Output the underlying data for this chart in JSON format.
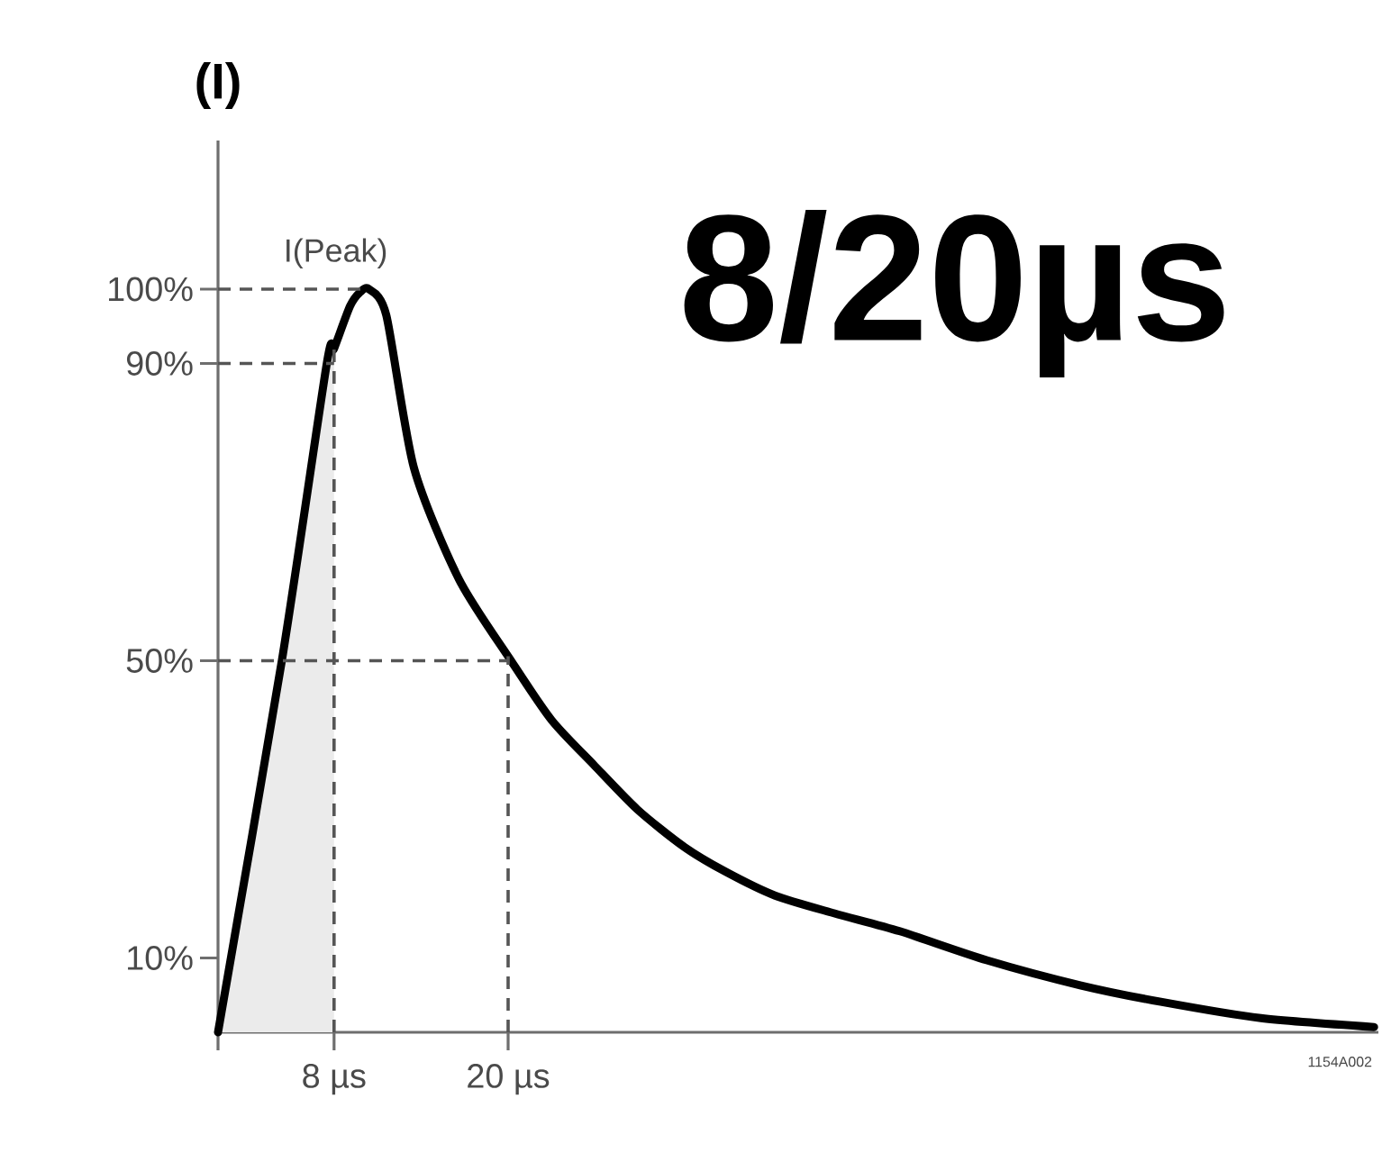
{
  "chart_data": {
    "type": "line",
    "title": "8/20µs",
    "ylabel": "(I)",
    "annotations": [
      "I(Peak)",
      "1154A002"
    ],
    "series": [
      {
        "type": "area",
        "color": "#ebebeb",
        "x": [
          0,
          4.4,
          7.5,
          8
        ],
        "values": [
          0,
          50,
          90,
          92
        ]
      },
      {
        "color": "#000000",
        "x": [
          0,
          4.4,
          7.5,
          8,
          9.1,
          9.8,
          10.4,
          11.6,
          13.5,
          16.6,
          20.2,
          23,
          25.9,
          28.9,
          32.1,
          35,
          38.4,
          42.5,
          47,
          53,
          59.5,
          65,
          71.9,
          79.7
        ],
        "values": [
          0,
          50,
          90,
          92,
          97.7,
          99.6,
          100,
          96.5,
          76,
          61,
          50,
          42,
          36,
          30,
          25,
          21.6,
          18.4,
          16,
          13.6,
          9.7,
          6.3,
          4.1,
          1.9,
          0.7
        ]
      }
    ],
    "xlim": [
      0,
      80
    ],
    "ylim": [
      0,
      120
    ],
    "xticks": [
      {
        "value": 0,
        "label": null
      },
      {
        "value": 8,
        "label": "8 µs"
      },
      {
        "value": 20,
        "label": "20 µs"
      }
    ],
    "yticks": [
      {
        "value": 10,
        "label": "10%"
      },
      {
        "value": 50,
        "label": "50%"
      },
      {
        "value": 90,
        "label": "90%"
      },
      {
        "value": 100,
        "label": "100%"
      }
    ],
    "ref_lines": [
      {
        "axis": "y",
        "value": 100,
        "color": "#555555",
        "line_style": "dashed"
      },
      {
        "axis": "y",
        "value": 90,
        "color": "#555555",
        "line_style": "dashed"
      },
      {
        "axis": "y",
        "value": 50,
        "color": "#555555",
        "line_style": "dashed"
      },
      {
        "axis": "x",
        "value": 8,
        "color": "#555555",
        "line_style": "dashed"
      },
      {
        "axis": "x",
        "value": 20,
        "color": "#555555",
        "line_style": "dashed"
      }
    ],
    "grid": false,
    "marker": "none",
    "line_style": "solid"
  }
}
